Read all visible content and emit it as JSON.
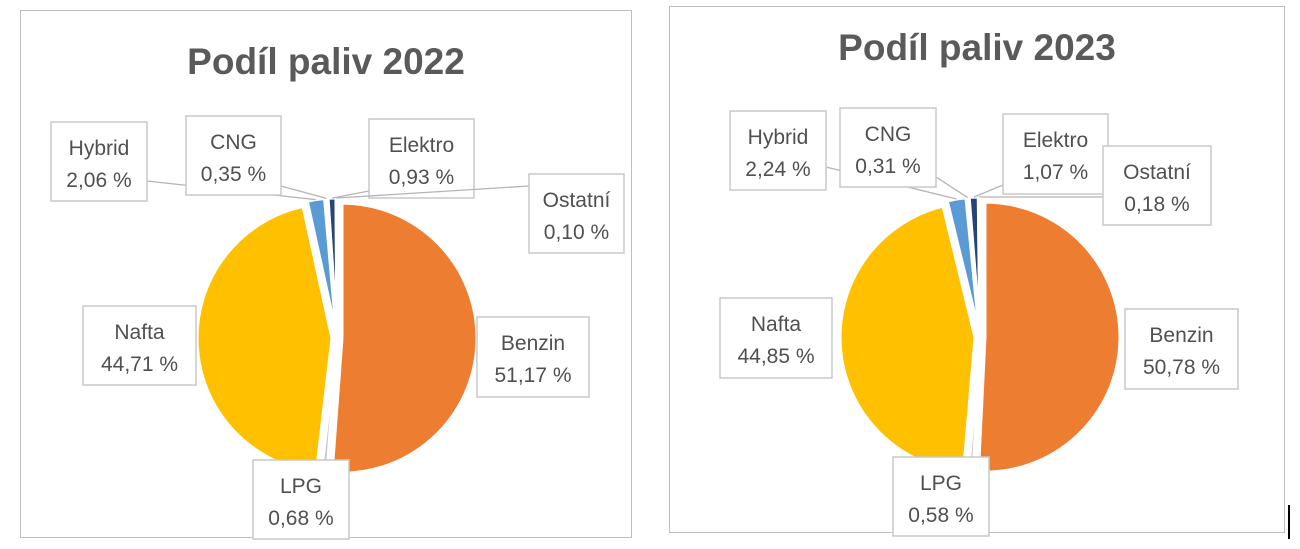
{
  "chart_data": [
    {
      "type": "pie",
      "title": "Podíl paliv 2022",
      "slices": [
        {
          "name": "Benzin",
          "label": "51,17 %",
          "value": 51.17,
          "color": "#ed7d31"
        },
        {
          "name": "LPG",
          "label": "0,68 %",
          "value": 0.68,
          "color": "#c8c8c8"
        },
        {
          "name": "Nafta",
          "label": "44,71 %",
          "value": 44.71,
          "color": "#ffc000"
        },
        {
          "name": "Hybrid",
          "label": "2,06 %",
          "value": 2.06,
          "color": "#5b9bd5"
        },
        {
          "name": "CNG",
          "label": "0,35 %",
          "value": 0.35,
          "color": "#70ad47"
        },
        {
          "name": "Elektro",
          "label": "0,93 %",
          "value": 0.93,
          "color": "#264478"
        },
        {
          "name": "Ostatní",
          "label": "0,10 %",
          "value": 0.1,
          "color": "#9e480e"
        }
      ]
    },
    {
      "type": "pie",
      "title": "Podíl paliv 2023",
      "slices": [
        {
          "name": "Benzin",
          "label": "50,78 %",
          "value": 50.78,
          "color": "#ed7d31"
        },
        {
          "name": "LPG",
          "label": "0,58 %",
          "value": 0.58,
          "color": "#c8c8c8"
        },
        {
          "name": "Nafta",
          "label": "44,85 %",
          "value": 44.85,
          "color": "#ffc000"
        },
        {
          "name": "Hybrid",
          "label": "2,24 %",
          "value": 2.24,
          "color": "#5b9bd5"
        },
        {
          "name": "CNG",
          "label": "0,31 %",
          "value": 0.31,
          "color": "#70ad47"
        },
        {
          "name": "Elektro",
          "label": "1,07 %",
          "value": 1.07,
          "color": "#264478"
        },
        {
          "name": "Ostatní",
          "label": "0,18 %",
          "value": 0.18,
          "color": "#9e480e"
        }
      ]
    }
  ]
}
